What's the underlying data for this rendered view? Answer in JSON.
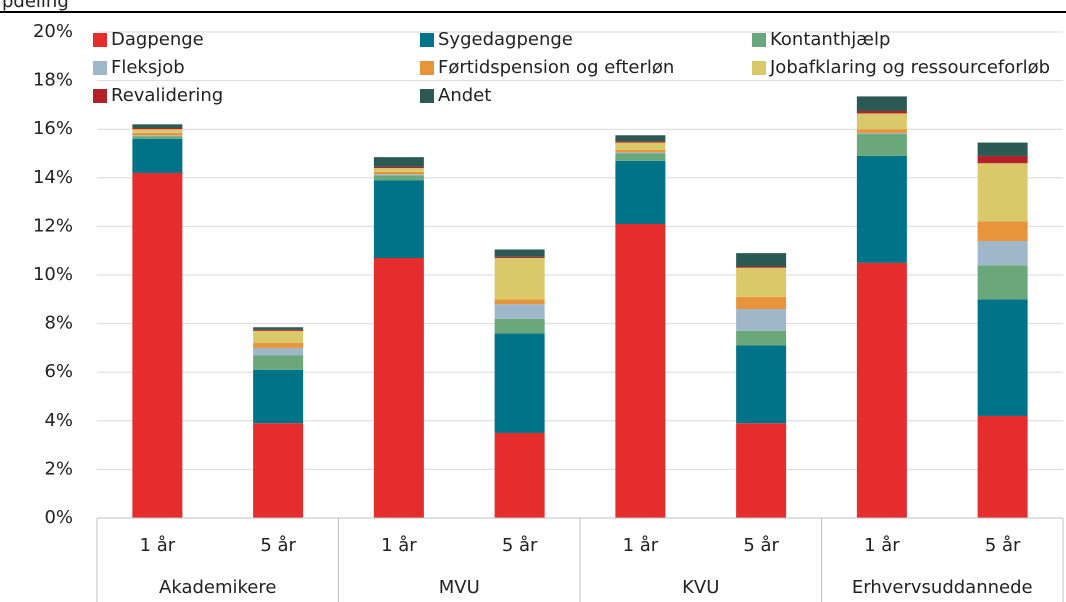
{
  "chart_data": {
    "type": "stacked_bar",
    "title": "pdeling",
    "categories": [
      "1 år",
      "5 år",
      "1 år",
      "5 år",
      "1 år",
      "5 år",
      "1 år",
      "5 år"
    ],
    "groups": [
      "Akademikere",
      "MVU",
      "KVU",
      "Erhvervsuddannede"
    ],
    "series": [
      {
        "name": "Dagpenge",
        "color": "#e52d2d",
        "values": [
          14.2,
          3.9,
          10.7,
          3.5,
          12.1,
          3.9,
          10.5,
          4.2
        ]
      },
      {
        "name": "Sygedagpenge",
        "color": "#007388",
        "values": [
          1.4,
          2.2,
          3.2,
          4.1,
          2.6,
          3.2,
          4.4,
          4.8
        ]
      },
      {
        "name": "Kontanthjælp",
        "color": "#6aa77a",
        "values": [
          0.1,
          0.6,
          0.2,
          0.6,
          0.3,
          0.6,
          0.9,
          1.4
        ]
      },
      {
        "name": "Fleksjob",
        "color": "#9fb8c9",
        "values": [
          0.05,
          0.3,
          0.05,
          0.6,
          0.05,
          0.9,
          0.05,
          1.0
        ]
      },
      {
        "name": "Førtidspension og efterløn",
        "color": "#e8943a",
        "values": [
          0.1,
          0.2,
          0.1,
          0.2,
          0.1,
          0.5,
          0.15,
          0.8
        ]
      },
      {
        "name": "Jobafklaring og ressourceforløb",
        "color": "#d9c96a",
        "values": [
          0.15,
          0.5,
          0.15,
          1.7,
          0.3,
          1.2,
          0.65,
          2.4
        ]
      },
      {
        "name": "Revalidering",
        "color": "#b22028",
        "values": [
          0.05,
          0.05,
          0.05,
          0.05,
          0.05,
          0.05,
          0.1,
          0.3
        ]
      },
      {
        "name": "Andet",
        "color": "#2b5a55",
        "values": [
          0.15,
          0.1,
          0.4,
          0.3,
          0.25,
          0.55,
          0.6,
          0.55
        ]
      }
    ],
    "ylim": [
      0,
      20
    ],
    "yticks": [
      {
        "value": 0,
        "label": "0%"
      },
      {
        "value": 2,
        "label": "2%"
      },
      {
        "value": 4,
        "label": "4%"
      },
      {
        "value": 6,
        "label": "6%"
      },
      {
        "value": 8,
        "label": "8%"
      },
      {
        "value": 10,
        "label": "10%"
      },
      {
        "value": 12,
        "label": "12%"
      },
      {
        "value": 14,
        "label": "14%"
      },
      {
        "value": 16,
        "label": "16%"
      },
      {
        "value": 18,
        "label": "18%"
      },
      {
        "value": 20,
        "label": "20%"
      }
    ],
    "grid": true,
    "legend": "top"
  }
}
